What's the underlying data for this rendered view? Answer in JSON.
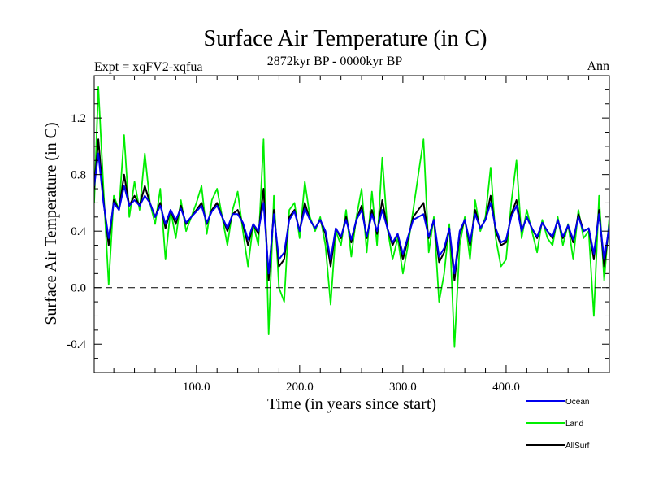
{
  "chart_data": {
    "type": "line",
    "title": "Surface Air Temperature (in C)",
    "subtitle_left": "Expt = xqFV2-xqfua",
    "subtitle_center": "2872kyr BP - 0000kyr BP",
    "subtitle_right": "Ann",
    "xlabel": "Time (in years since start)",
    "ylabel": "Surface Air Temperature (in C)",
    "xlim": [
      1,
      500
    ],
    "ylim": [
      -0.6,
      1.5
    ],
    "x_ticks": [
      100,
      200,
      300,
      400
    ],
    "x_tick_labels": [
      "100.0",
      "200.0",
      "300.0",
      "400.0"
    ],
    "y_ticks": [
      -0.4,
      0.0,
      0.4,
      0.8,
      1.2
    ],
    "y_tick_labels": [
      "-0.4",
      "0.0",
      "0.4",
      "0.8",
      "1.2"
    ],
    "reference_line": 0.0,
    "legend_position": "bottom-right",
    "series": [
      {
        "name": "Land",
        "color": "#00ee00",
        "x": [
          1,
          5,
          10,
          15,
          20,
          25,
          30,
          35,
          40,
          45,
          50,
          55,
          60,
          65,
          70,
          75,
          80,
          85,
          90,
          95,
          100,
          105,
          110,
          115,
          120,
          125,
          130,
          135,
          140,
          145,
          150,
          155,
          160,
          165,
          170,
          175,
          180,
          185,
          190,
          195,
          200,
          205,
          210,
          215,
          220,
          225,
          230,
          235,
          240,
          245,
          250,
          255,
          260,
          265,
          270,
          275,
          280,
          285,
          290,
          295,
          300,
          305,
          310,
          315,
          320,
          325,
          330,
          335,
          340,
          345,
          350,
          355,
          360,
          365,
          370,
          375,
          380,
          385,
          390,
          395,
          400,
          405,
          410,
          415,
          420,
          425,
          430,
          435,
          440,
          445,
          450,
          455,
          460,
          465,
          470,
          475,
          480,
          485,
          490,
          495,
          500
        ],
        "values": [
          0.6,
          1.42,
          0.7,
          0.02,
          0.65,
          0.55,
          1.08,
          0.5,
          0.75,
          0.55,
          0.95,
          0.6,
          0.45,
          0.7,
          0.2,
          0.55,
          0.35,
          0.62,
          0.4,
          0.5,
          0.6,
          0.72,
          0.38,
          0.62,
          0.7,
          0.5,
          0.3,
          0.55,
          0.68,
          0.4,
          0.15,
          0.45,
          0.3,
          1.05,
          -0.33,
          0.65,
          0.0,
          -0.1,
          0.55,
          0.6,
          0.35,
          0.75,
          0.5,
          0.4,
          0.5,
          0.3,
          -0.12,
          0.4,
          0.3,
          0.55,
          0.22,
          0.5,
          0.7,
          0.25,
          0.68,
          0.3,
          0.92,
          0.42,
          0.2,
          0.35,
          0.1,
          0.3,
          0.55,
          0.8,
          1.05,
          0.25,
          0.5,
          -0.1,
          0.1,
          0.45,
          -0.42,
          0.3,
          0.5,
          0.2,
          0.62,
          0.4,
          0.5,
          0.85,
          0.35,
          0.15,
          0.2,
          0.6,
          0.9,
          0.35,
          0.55,
          0.4,
          0.25,
          0.48,
          0.35,
          0.3,
          0.5,
          0.3,
          0.45,
          0.2,
          0.55,
          0.35,
          0.4,
          -0.2,
          0.65,
          0.05,
          0.5
        ]
      },
      {
        "name": "AllSurf",
        "color": "#000000",
        "x": [
          1,
          5,
          10,
          15,
          20,
          25,
          30,
          35,
          40,
          45,
          50,
          55,
          60,
          65,
          70,
          75,
          80,
          85,
          90,
          95,
          100,
          105,
          110,
          115,
          120,
          125,
          130,
          135,
          140,
          145,
          150,
          155,
          160,
          165,
          170,
          175,
          180,
          185,
          190,
          195,
          200,
          205,
          210,
          215,
          220,
          225,
          230,
          235,
          240,
          245,
          250,
          255,
          260,
          265,
          270,
          275,
          280,
          285,
          290,
          295,
          300,
          305,
          310,
          315,
          320,
          325,
          330,
          335,
          340,
          345,
          350,
          355,
          360,
          365,
          370,
          375,
          380,
          385,
          390,
          395,
          400,
          405,
          410,
          415,
          420,
          425,
          430,
          435,
          440,
          445,
          450,
          455,
          460,
          465,
          470,
          475,
          480,
          485,
          490,
          495,
          500
        ],
        "values": [
          0.7,
          1.05,
          0.62,
          0.3,
          0.62,
          0.55,
          0.8,
          0.58,
          0.65,
          0.58,
          0.72,
          0.6,
          0.5,
          0.6,
          0.42,
          0.55,
          0.45,
          0.58,
          0.45,
          0.5,
          0.55,
          0.6,
          0.45,
          0.55,
          0.6,
          0.5,
          0.4,
          0.52,
          0.55,
          0.45,
          0.3,
          0.45,
          0.38,
          0.7,
          0.05,
          0.55,
          0.15,
          0.2,
          0.5,
          0.55,
          0.4,
          0.6,
          0.48,
          0.42,
          0.48,
          0.38,
          0.15,
          0.42,
          0.35,
          0.5,
          0.32,
          0.48,
          0.58,
          0.35,
          0.55,
          0.38,
          0.62,
          0.42,
          0.3,
          0.38,
          0.2,
          0.35,
          0.5,
          0.55,
          0.6,
          0.35,
          0.48,
          0.18,
          0.25,
          0.42,
          0.05,
          0.38,
          0.48,
          0.3,
          0.55,
          0.42,
          0.48,
          0.65,
          0.4,
          0.3,
          0.32,
          0.52,
          0.62,
          0.4,
          0.5,
          0.42,
          0.35,
          0.46,
          0.4,
          0.35,
          0.48,
          0.35,
          0.44,
          0.32,
          0.52,
          0.4,
          0.42,
          0.2,
          0.55,
          0.15,
          0.45
        ]
      },
      {
        "name": "Ocean",
        "color": "#0000ee",
        "x": [
          1,
          5,
          10,
          15,
          20,
          25,
          30,
          35,
          40,
          45,
          50,
          55,
          60,
          65,
          70,
          75,
          80,
          85,
          90,
          95,
          100,
          105,
          110,
          115,
          120,
          125,
          130,
          135,
          140,
          145,
          150,
          155,
          160,
          165,
          170,
          175,
          180,
          185,
          190,
          195,
          200,
          205,
          210,
          215,
          220,
          225,
          230,
          235,
          240,
          245,
          250,
          255,
          260,
          265,
          270,
          275,
          280,
          285,
          290,
          295,
          300,
          305,
          310,
          315,
          320,
          325,
          330,
          335,
          340,
          345,
          350,
          355,
          360,
          365,
          370,
          375,
          380,
          385,
          390,
          395,
          400,
          405,
          410,
          415,
          420,
          425,
          430,
          435,
          440,
          445,
          450,
          455,
          460,
          465,
          470,
          475,
          480,
          485,
          490,
          495,
          500
        ],
        "values": [
          0.72,
          0.95,
          0.6,
          0.35,
          0.6,
          0.55,
          0.72,
          0.58,
          0.62,
          0.58,
          0.65,
          0.6,
          0.5,
          0.58,
          0.45,
          0.55,
          0.48,
          0.56,
          0.46,
          0.5,
          0.54,
          0.58,
          0.46,
          0.54,
          0.58,
          0.5,
          0.42,
          0.52,
          0.52,
          0.46,
          0.34,
          0.45,
          0.4,
          0.6,
          0.1,
          0.52,
          0.2,
          0.25,
          0.48,
          0.54,
          0.4,
          0.56,
          0.48,
          0.42,
          0.48,
          0.4,
          0.2,
          0.42,
          0.36,
          0.48,
          0.34,
          0.48,
          0.55,
          0.36,
          0.52,
          0.4,
          0.55,
          0.42,
          0.32,
          0.38,
          0.24,
          0.36,
          0.48,
          0.5,
          0.52,
          0.36,
          0.48,
          0.22,
          0.28,
          0.42,
          0.1,
          0.4,
          0.48,
          0.32,
          0.52,
          0.42,
          0.48,
          0.6,
          0.42,
          0.32,
          0.34,
          0.5,
          0.58,
          0.4,
          0.5,
          0.42,
          0.36,
          0.46,
          0.4,
          0.36,
          0.48,
          0.36,
          0.44,
          0.34,
          0.5,
          0.4,
          0.42,
          0.24,
          0.52,
          0.2,
          0.44
        ]
      }
    ]
  }
}
